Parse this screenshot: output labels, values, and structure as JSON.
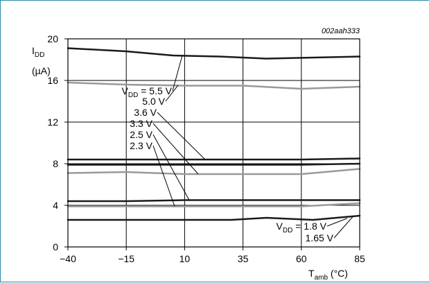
{
  "chart_data": {
    "type": "line",
    "figure_id": "002aah333",
    "ylabel": {
      "main": "I",
      "sub": "DD",
      "unit": "(µA)"
    },
    "xlabel": {
      "main": "T",
      "sub": "amb",
      "unit": " (°C)"
    },
    "xlim": [
      -40,
      85
    ],
    "ylim": [
      0,
      20
    ],
    "x_ticks": [
      -40,
      -15,
      10,
      35,
      60,
      85
    ],
    "x_tick_labels": [
      "−40",
      "−15",
      "10",
      "35",
      "60",
      "85"
    ],
    "y_ticks": [
      0,
      4,
      8,
      12,
      16,
      20
    ],
    "y_tick_labels": [
      "0",
      "4",
      "8",
      "12",
      "16",
      "20"
    ],
    "grid": true,
    "series": [
      {
        "name": "5.5 V",
        "color": "#1a1a1a",
        "x": [
          -40,
          -15,
          5,
          25,
          45,
          65,
          85
        ],
        "y": [
          19.1,
          18.8,
          18.4,
          18.3,
          18.1,
          18.2,
          18.3
        ]
      },
      {
        "name": "5.0 V",
        "color": "#999999",
        "x": [
          -40,
          -15,
          10,
          35,
          60,
          85
        ],
        "y": [
          15.8,
          15.6,
          15.5,
          15.5,
          15.2,
          15.4
        ]
      },
      {
        "name": "3.6 V",
        "color": "#1a1a1a",
        "x": [
          -40,
          -15,
          10,
          35,
          60,
          85
        ],
        "y": [
          8.4,
          8.4,
          8.4,
          8.4,
          8.4,
          8.5
        ]
      },
      {
        "name": "3.3 V",
        "color": "#1a1a1a",
        "x": [
          -40,
          -15,
          10,
          35,
          60,
          85
        ],
        "y": [
          7.9,
          7.9,
          7.9,
          7.9,
          7.9,
          8.0
        ]
      },
      {
        "name": "2.5 V",
        "color": "#999999",
        "x": [
          -40,
          -15,
          10,
          35,
          60,
          85
        ],
        "y": [
          7.1,
          7.2,
          7.0,
          7.0,
          7.0,
          7.5
        ]
      },
      {
        "name": "2.3 V",
        "color": "#1a1a1a",
        "x": [
          -40,
          -15,
          10,
          35,
          60,
          85
        ],
        "y": [
          4.4,
          4.4,
          4.5,
          4.5,
          4.5,
          4.5
        ]
      },
      {
        "name": "1.8 V",
        "color": "#999999",
        "x": [
          -40,
          -15,
          10,
          35,
          60,
          85
        ],
        "y": [
          3.9,
          3.9,
          3.9,
          3.9,
          3.9,
          4.2
        ]
      },
      {
        "name": "1.65 V",
        "color": "#1a1a1a",
        "x": [
          -40,
          -15,
          10,
          30,
          45,
          65,
          85
        ],
        "y": [
          2.6,
          2.6,
          2.6,
          2.6,
          2.8,
          2.6,
          3.0
        ]
      }
    ],
    "labels_group_top": {
      "prefix_main": "V",
      "prefix_sub": "DD",
      "prefix_eq": " = ",
      "values": [
        "5.5 V",
        "5.0 V",
        "3.6 V",
        "3.3 V",
        "2.5 V",
        "2.3 V"
      ]
    },
    "labels_group_bottom": {
      "prefix_main": "V",
      "prefix_sub": "DD",
      "prefix_eq": " = ",
      "values": [
        "1.8 V",
        "1.65 V"
      ]
    }
  }
}
